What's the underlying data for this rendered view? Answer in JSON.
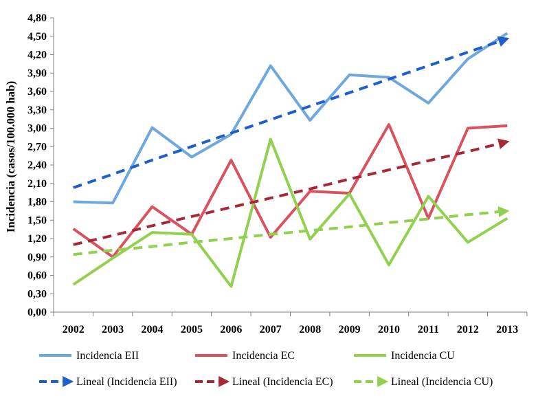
{
  "chart_data": {
    "type": "line",
    "categories": [
      "2002",
      "2003",
      "2004",
      "2005",
      "2006",
      "2007",
      "2008",
      "2009",
      "2010",
      "2011",
      "2012",
      "2013"
    ],
    "ylabel": "Incidencia (casos/100.000 hab)",
    "xlabel": "",
    "ylim": [
      0,
      4.8
    ],
    "yticks": [
      "0,00",
      "0,30",
      "0,60",
      "0,90",
      "1,20",
      "1,50",
      "1,80",
      "2,10",
      "2,40",
      "2,70",
      "3,00",
      "3,30",
      "3,60",
      "3,90",
      "4,20",
      "4,50",
      "4,80"
    ],
    "grid": false,
    "legend_position": "bottom",
    "series": [
      {
        "name": "Incidencia EII",
        "style": "solid",
        "color": "#6FA8DC",
        "values": [
          1.8,
          1.78,
          3.01,
          2.53,
          2.9,
          4.02,
          3.13,
          3.87,
          3.83,
          3.41,
          4.13,
          4.55
        ]
      },
      {
        "name": "Incidencia EC",
        "style": "solid",
        "color": "#D9535F",
        "values": [
          1.36,
          0.9,
          1.72,
          1.27,
          2.48,
          1.22,
          1.97,
          1.94,
          3.06,
          1.53,
          3.0,
          3.04
        ]
      },
      {
        "name": "Incidencia CU",
        "style": "solid",
        "color": "#92D050",
        "values": [
          0.45,
          0.88,
          1.3,
          1.27,
          0.42,
          2.82,
          1.19,
          1.93,
          0.77,
          1.89,
          1.14,
          1.53
        ]
      },
      {
        "name": "Lineal (Incidencia EII)",
        "style": "dashed",
        "color": "#1F5FC9",
        "values": [
          2.03,
          2.25,
          2.48,
          2.7,
          2.92,
          3.14,
          3.36,
          3.58,
          3.8,
          4.02,
          4.24,
          4.46
        ]
      },
      {
        "name": "Lineal (Incidencia EC)",
        "style": "dashed",
        "color": "#A52A35",
        "values": [
          1.1,
          1.25,
          1.41,
          1.56,
          1.71,
          1.86,
          2.01,
          2.17,
          2.32,
          2.47,
          2.62,
          2.78
        ]
      },
      {
        "name": "Lineal (Incidencia CU)",
        "style": "dashed",
        "color": "#92D050",
        "values": [
          0.94,
          1.01,
          1.07,
          1.14,
          1.2,
          1.27,
          1.33,
          1.39,
          1.46,
          1.52,
          1.59,
          1.65
        ]
      }
    ]
  }
}
